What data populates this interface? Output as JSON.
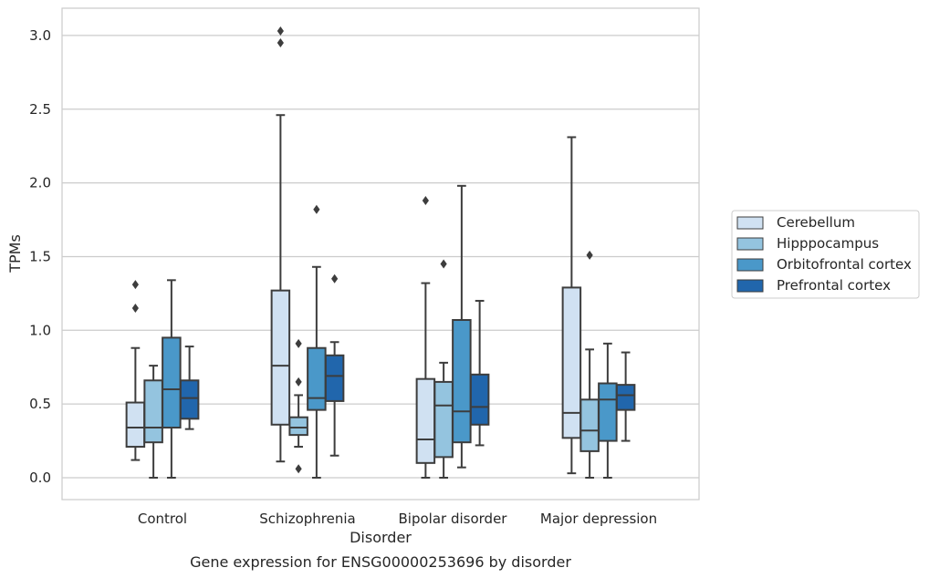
{
  "chart_data": {
    "type": "box",
    "title": "",
    "caption": "Gene expression for ENSG00000253696 by disorder",
    "xlabel": "Disorder",
    "ylabel": "TPMs",
    "ylim": [
      -0.15,
      3.2
    ],
    "yticks": [
      0.0,
      0.5,
      1.0,
      1.5,
      2.0,
      2.5,
      3.0
    ],
    "ytick_labels": [
      "0.0",
      "0.5",
      "1.0",
      "1.5",
      "2.0",
      "2.5",
      "3.0"
    ],
    "grid": "horizontal",
    "legend_position": "right",
    "categories": [
      "Control",
      "Schizophrenia",
      "Bipolar disorder",
      "Major depression"
    ],
    "series": [
      {
        "name": "Cerebellum",
        "color": "#d0e1f2",
        "boxes": [
          {
            "whislo": 0.12,
            "q1": 0.21,
            "med": 0.34,
            "q3": 0.51,
            "whishi": 0.88,
            "fliers": [
              1.15,
              1.31
            ]
          },
          {
            "whislo": 0.11,
            "q1": 0.36,
            "med": 0.76,
            "q3": 1.27,
            "whishi": 2.46,
            "fliers": [
              2.95,
              3.03
            ]
          },
          {
            "whislo": 0.0,
            "q1": 0.1,
            "med": 0.26,
            "q3": 0.67,
            "whishi": 1.32,
            "fliers": [
              1.88
            ]
          },
          {
            "whislo": 0.03,
            "q1": 0.27,
            "med": 0.44,
            "q3": 1.29,
            "whishi": 2.31,
            "fliers": []
          }
        ]
      },
      {
        "name": "Hipppocampus",
        "color": "#94c4df",
        "boxes": [
          {
            "whislo": 0.0,
            "q1": 0.24,
            "med": 0.34,
            "q3": 0.66,
            "whishi": 0.76,
            "fliers": []
          },
          {
            "whislo": 0.21,
            "q1": 0.29,
            "med": 0.34,
            "q3": 0.41,
            "whishi": 0.56,
            "fliers": [
              0.06,
              0.65,
              0.91
            ]
          },
          {
            "whislo": 0.0,
            "q1": 0.14,
            "med": 0.49,
            "q3": 0.65,
            "whishi": 0.78,
            "fliers": [
              1.45
            ]
          },
          {
            "whislo": 0.0,
            "q1": 0.18,
            "med": 0.32,
            "q3": 0.53,
            "whishi": 0.87,
            "fliers": [
              1.51
            ]
          }
        ]
      },
      {
        "name": "Orbitofrontal cortex",
        "color": "#4a98c9",
        "boxes": [
          {
            "whislo": 0.0,
            "q1": 0.34,
            "med": 0.6,
            "q3": 0.95,
            "whishi": 1.34,
            "fliers": []
          },
          {
            "whislo": 0.0,
            "q1": 0.46,
            "med": 0.54,
            "q3": 0.88,
            "whishi": 1.43,
            "fliers": [
              1.82
            ]
          },
          {
            "whislo": 0.07,
            "q1": 0.24,
            "med": 0.45,
            "q3": 1.07,
            "whishi": 1.98,
            "fliers": []
          },
          {
            "whislo": 0.0,
            "q1": 0.25,
            "med": 0.53,
            "q3": 0.64,
            "whishi": 0.91,
            "fliers": []
          }
        ]
      },
      {
        "name": "Prefrontal cortex",
        "color": "#2166ac",
        "boxes": [
          {
            "whislo": 0.33,
            "q1": 0.4,
            "med": 0.54,
            "q3": 0.66,
            "whishi": 0.89,
            "fliers": []
          },
          {
            "whislo": 0.15,
            "q1": 0.52,
            "med": 0.69,
            "q3": 0.83,
            "whishi": 0.92,
            "fliers": [
              1.35
            ]
          },
          {
            "whislo": 0.22,
            "q1": 0.36,
            "med": 0.48,
            "q3": 0.7,
            "whishi": 1.2,
            "fliers": []
          },
          {
            "whislo": 0.25,
            "q1": 0.46,
            "med": 0.56,
            "q3": 0.63,
            "whishi": 0.85,
            "fliers": []
          }
        ]
      }
    ]
  }
}
